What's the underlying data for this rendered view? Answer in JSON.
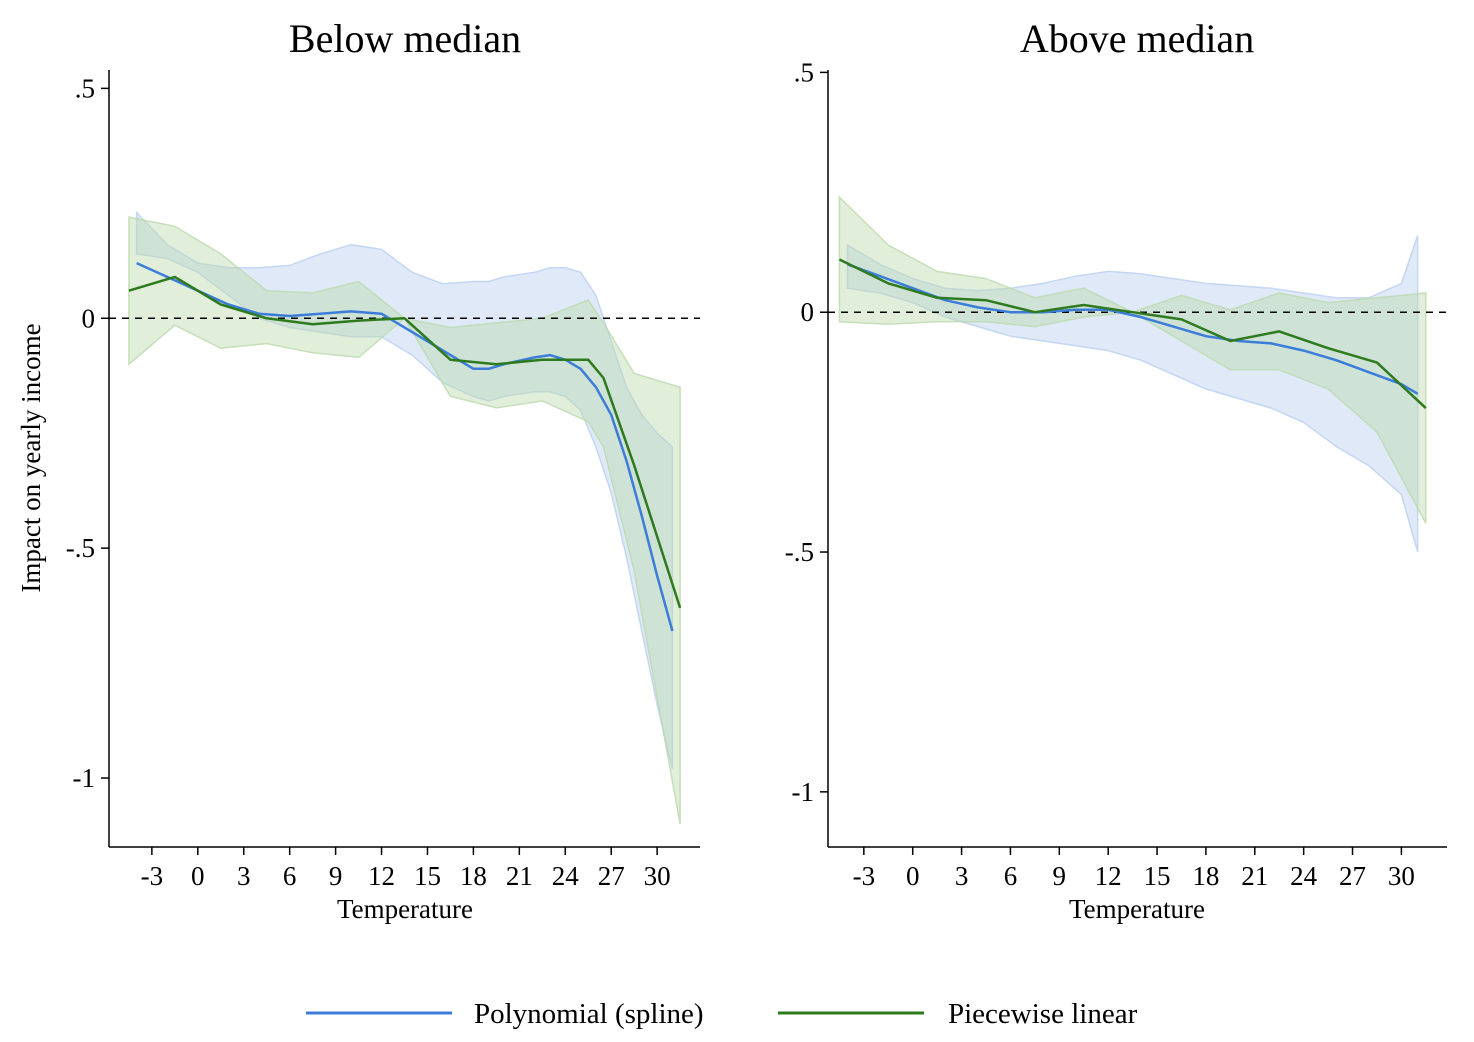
{
  "colors": {
    "spline": "#3b7dd8",
    "spline_band": "#b9cff0",
    "linear": "#2e7a1e",
    "linear_band": "#bcd9ae",
    "axis": "#000000",
    "zero_line": "#000000"
  },
  "legend": {
    "items": [
      {
        "label": "Polynomial (spline)",
        "series": "spline"
      },
      {
        "label": "Piecewise linear",
        "series": "linear"
      }
    ],
    "position": "bottom-center"
  },
  "chart_data": [
    {
      "type": "line",
      "title": "Below median",
      "xlabel": "Temperature",
      "ylabel": "Impact on yearly income",
      "xlim": [
        -5.8,
        32.8
      ],
      "ylim": [
        -1.15,
        0.54
      ],
      "xticks": [
        -3,
        0,
        3,
        6,
        9,
        12,
        15,
        18,
        21,
        24,
        27,
        30
      ],
      "xtick_labels": [
        "-3",
        "0",
        "3",
        "6",
        "9",
        "12",
        "15",
        "18",
        "21",
        "24",
        "27",
        "30"
      ],
      "yticks": [
        0.5,
        0,
        -0.5,
        -1
      ],
      "ytick_labels": [
        ".5",
        "0",
        "-.5",
        "-1"
      ],
      "reference_line": 0,
      "series": [
        {
          "name": "Polynomial (spline)",
          "key": "spline",
          "x": [
            -4,
            -2,
            0,
            2,
            4,
            6,
            8,
            10,
            12,
            14,
            16,
            18,
            19,
            20,
            22,
            23,
            24,
            25,
            26,
            27,
            28,
            29,
            30,
            31
          ],
          "y": [
            0.12,
            0.09,
            0.06,
            0.03,
            0.01,
            0.005,
            0.01,
            0.015,
            0.01,
            -0.03,
            -0.07,
            -0.11,
            -0.11,
            -0.1,
            -0.085,
            -0.08,
            -0.09,
            -0.11,
            -0.15,
            -0.21,
            -0.31,
            -0.43,
            -0.56,
            -0.68
          ],
          "lower": [
            0.14,
            0.13,
            0.1,
            0.05,
            0.0,
            -0.02,
            -0.03,
            -0.04,
            -0.04,
            -0.08,
            -0.14,
            -0.17,
            -0.18,
            -0.17,
            -0.16,
            -0.16,
            -0.17,
            -0.2,
            -0.28,
            -0.38,
            -0.52,
            -0.68,
            -0.84,
            -0.98
          ],
          "upper": [
            0.23,
            0.16,
            0.12,
            0.11,
            0.11,
            0.115,
            0.14,
            0.16,
            0.15,
            0.1,
            0.075,
            0.08,
            0.08,
            0.09,
            0.1,
            0.11,
            0.11,
            0.1,
            0.05,
            -0.05,
            -0.15,
            -0.21,
            -0.25,
            -0.28
          ]
        },
        {
          "name": "Piecewise linear",
          "key": "linear",
          "x": [
            -4.5,
            -1.5,
            1.5,
            4.5,
            7.5,
            10.5,
            13.5,
            16.5,
            19.5,
            22.5,
            25.5,
            26.5,
            28.5,
            31.5
          ],
          "y": [
            0.06,
            0.09,
            0.03,
            0.0,
            -0.013,
            -0.005,
            0.0,
            -0.09,
            -0.1,
            -0.09,
            -0.09,
            -0.13,
            -0.32,
            -0.63
          ],
          "lower": [
            -0.1,
            -0.015,
            -0.065,
            -0.055,
            -0.075,
            -0.085,
            0.0,
            -0.17,
            -0.195,
            -0.18,
            -0.225,
            -0.28,
            -0.55,
            -1.1
          ],
          "upper": [
            0.22,
            0.2,
            0.14,
            0.06,
            0.055,
            0.08,
            0.0,
            -0.02,
            -0.01,
            0.0,
            0.04,
            -0.01,
            -0.12,
            -0.15
          ]
        }
      ]
    },
    {
      "type": "line",
      "title": "Above median",
      "xlabel": "Temperature",
      "ylabel": "",
      "xlim": [
        -5.2,
        32.8
      ],
      "ylim": [
        -1.115,
        0.505
      ],
      "xticks": [
        -3,
        0,
        3,
        6,
        9,
        12,
        15,
        18,
        21,
        24,
        27,
        30
      ],
      "xtick_labels": [
        "-3",
        "0",
        "3",
        "6",
        "9",
        "12",
        "15",
        "18",
        "21",
        "24",
        "27",
        "30"
      ],
      "yticks": [
        0.5,
        0,
        -0.5,
        -1
      ],
      "ytick_labels": [
        ".5",
        "0",
        "-.5",
        "-1"
      ],
      "reference_line": 0,
      "series": [
        {
          "name": "Polynomial (spline)",
          "key": "spline",
          "x": [
            -4,
            -2,
            0,
            2,
            4,
            6,
            8,
            10,
            12,
            14,
            16,
            18,
            20,
            22,
            24,
            26,
            28,
            30,
            31
          ],
          "y": [
            0.1,
            0.075,
            0.05,
            0.025,
            0.01,
            0.0,
            0.0,
            0.005,
            0.005,
            -0.01,
            -0.03,
            -0.05,
            -0.06,
            -0.065,
            -0.08,
            -0.1,
            -0.125,
            -0.15,
            -0.17
          ],
          "lower": [
            0.05,
            0.04,
            0.02,
            -0.01,
            -0.03,
            -0.05,
            -0.06,
            -0.07,
            -0.08,
            -0.1,
            -0.13,
            -0.16,
            -0.18,
            -0.2,
            -0.23,
            -0.28,
            -0.32,
            -0.38,
            -0.5
          ],
          "upper": [
            0.14,
            0.1,
            0.07,
            0.05,
            0.045,
            0.05,
            0.06,
            0.075,
            0.085,
            0.08,
            0.07,
            0.06,
            0.055,
            0.05,
            0.04,
            0.03,
            0.03,
            0.06,
            0.16
          ]
        },
        {
          "name": "Piecewise linear",
          "key": "linear",
          "x": [
            -4.5,
            -1.5,
            1.5,
            4.5,
            7.5,
            10.5,
            13.5,
            16.5,
            19.5,
            22.5,
            25.5,
            28.5,
            31.5
          ],
          "y": [
            0.11,
            0.06,
            0.03,
            0.025,
            0.0,
            0.015,
            0.0,
            -0.015,
            -0.06,
            -0.04,
            -0.075,
            -0.105,
            -0.2
          ],
          "lower": [
            -0.02,
            -0.025,
            -0.02,
            -0.02,
            -0.03,
            -0.01,
            0.0,
            -0.06,
            -0.12,
            -0.12,
            -0.16,
            -0.25,
            -0.44
          ],
          "upper": [
            0.24,
            0.14,
            0.085,
            0.07,
            0.03,
            0.05,
            0.0,
            0.035,
            0.005,
            0.04,
            0.02,
            0.03,
            0.04
          ]
        }
      ]
    }
  ]
}
